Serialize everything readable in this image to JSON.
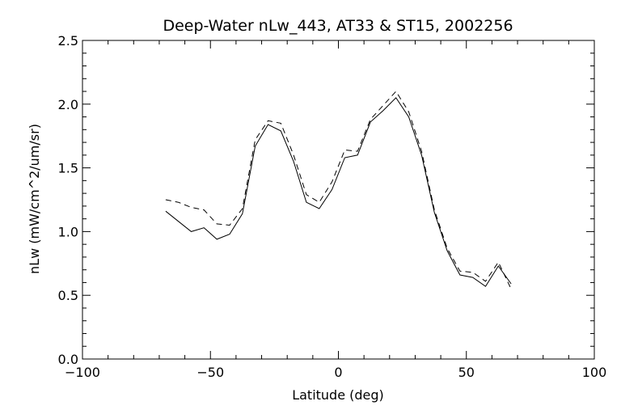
{
  "chart_data": {
    "type": "line",
    "title": "Deep-Water nLw_443, AT33 & ST15, 2002256",
    "xlabel": "Latitude (deg)",
    "ylabel": "nLw (mW/cm^2/um/sr)",
    "xlim": [
      -100,
      100
    ],
    "ylim": [
      0.0,
      2.5
    ],
    "x_ticks": [
      -100,
      -50,
      0,
      50,
      100
    ],
    "x_tick_labels": [
      "−100",
      "−50",
      "0",
      "50",
      "100"
    ],
    "y_ticks": [
      0.0,
      0.5,
      1.0,
      1.5,
      2.0,
      2.5
    ],
    "y_tick_labels": [
      "0.0",
      "0.5",
      "1.0",
      "1.5",
      "2.0",
      "2.5"
    ],
    "grid": false,
    "legend": "none",
    "series": [
      {
        "style": "solid",
        "color": "#000000",
        "x": [
          -67.5,
          -62.5,
          -57.5,
          -52.5,
          -47.5,
          -42.5,
          -37.5,
          -32.5,
          -27.5,
          -22.5,
          -17.5,
          -12.5,
          -7.5,
          -2.5,
          2.5,
          7.5,
          12.5,
          17.5,
          22.5,
          27.5,
          32.5,
          37.5,
          42.5,
          47.5,
          52.5,
          57.5,
          62.5,
          67.5
        ],
        "y": [
          1.16,
          1.08,
          1.0,
          1.03,
          0.94,
          0.98,
          1.14,
          1.67,
          1.84,
          1.79,
          1.55,
          1.23,
          1.18,
          1.33,
          1.58,
          1.6,
          1.86,
          1.95,
          2.05,
          1.9,
          1.6,
          1.15,
          0.85,
          0.66,
          0.64,
          0.57,
          0.73,
          0.59
        ]
      },
      {
        "style": "dashed",
        "color": "#000000",
        "x": [
          -67.5,
          -62.5,
          -57.5,
          -52.5,
          -47.5,
          -42.5,
          -37.5,
          -32.5,
          -27.5,
          -22.5,
          -17.5,
          -12.5,
          -7.5,
          -2.5,
          2.5,
          7.5,
          12.5,
          17.5,
          22.5,
          27.5,
          32.5,
          37.5,
          42.5,
          47.5,
          52.5,
          57.5,
          62.5,
          67.5
        ],
        "y": [
          1.25,
          1.23,
          1.19,
          1.17,
          1.06,
          1.05,
          1.18,
          1.72,
          1.87,
          1.85,
          1.6,
          1.29,
          1.23,
          1.39,
          1.64,
          1.63,
          1.88,
          1.99,
          2.1,
          1.94,
          1.63,
          1.17,
          0.87,
          0.69,
          0.68,
          0.61,
          0.76,
          0.55
        ]
      }
    ]
  }
}
